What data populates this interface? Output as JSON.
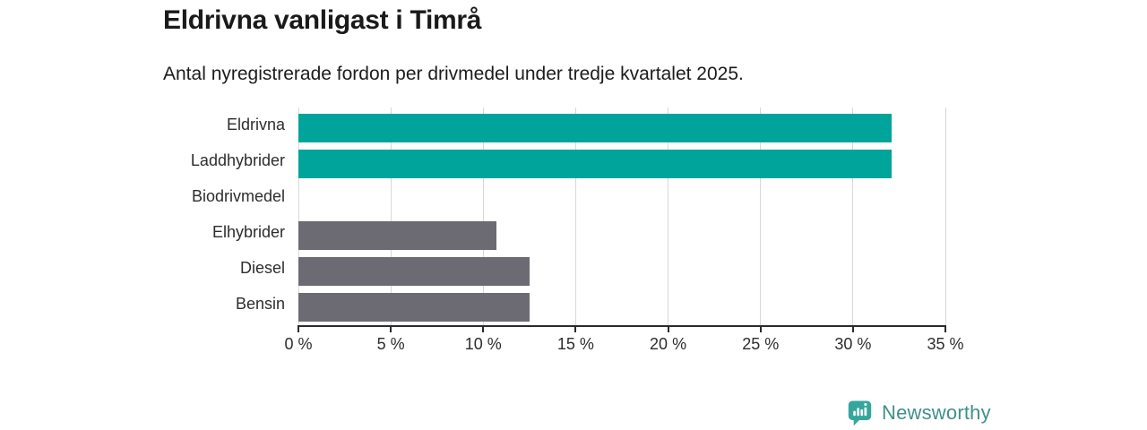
{
  "header": {
    "title": "Eldrivna vanligast i Timrå",
    "subtitle": "Antal nyregistrerade fordon per drivmedel under tredje kvartalet 2025."
  },
  "chart_data": {
    "type": "bar",
    "orientation": "horizontal",
    "title": "Eldrivna vanligast i Timrå",
    "subtitle": "Antal nyregistrerade fordon per drivmedel under tredje kvartalet 2025.",
    "categories": [
      "Eldrivna",
      "Laddhybrider",
      "Biodrivmedel",
      "Elhybrider",
      "Diesel",
      "Bensin"
    ],
    "values": [
      32.1,
      32.1,
      0,
      10.7,
      12.5,
      12.5
    ],
    "unit": "%",
    "bar_colors": [
      "#00a49a",
      "#00a49a",
      "#00a49a",
      "#6c6a72",
      "#6c6a72",
      "#6c6a72"
    ],
    "xlabel": "",
    "ylabel": "",
    "xlim": [
      0,
      35
    ],
    "x_ticks": [
      0,
      5,
      10,
      15,
      20,
      25,
      30,
      35
    ],
    "x_tick_labels": [
      "0 %",
      "5 %",
      "10 %",
      "15 %",
      "20 %",
      "25 %",
      "30 %",
      "35 %"
    ],
    "grid": true,
    "legend": false
  },
  "footer": {
    "logo_text": "Newsworthy",
    "logo_icon": "newsworthy-speech-bubble-bar-chart-icon"
  },
  "colors": {
    "accent_teal": "#00a49a",
    "bar_gray": "#6c6a72",
    "logo_teal": "#3f908c",
    "logo_icon_teal": "#35a69c",
    "axis": "#2b2b2b",
    "gridline": "#d8d8d8",
    "text_dark": "#1a1a1a",
    "background": "#ffffff"
  }
}
